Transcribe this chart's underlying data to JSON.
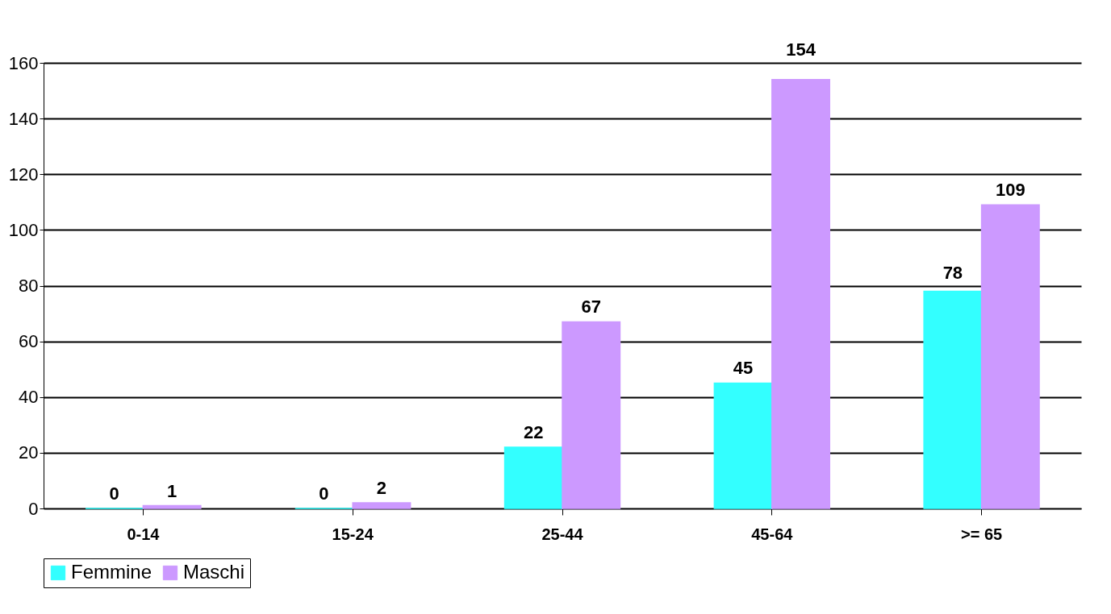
{
  "chart_data": {
    "type": "bar",
    "categories": [
      "0-14",
      "15-24",
      "25-44",
      "45-64",
      ">= 65"
    ],
    "series": [
      {
        "name": "Femmine",
        "color": "#33ffff",
        "values": [
          0,
          0,
          22,
          45,
          78
        ]
      },
      {
        "name": "Maschi",
        "color": "#cc99ff",
        "values": [
          1,
          2,
          67,
          154,
          109
        ]
      }
    ],
    "ylim": [
      0,
      160
    ],
    "yticks": [
      0,
      20,
      40,
      60,
      80,
      100,
      120,
      140,
      160
    ],
    "grid": "y",
    "legend": "bottom",
    "data_labels": true
  }
}
